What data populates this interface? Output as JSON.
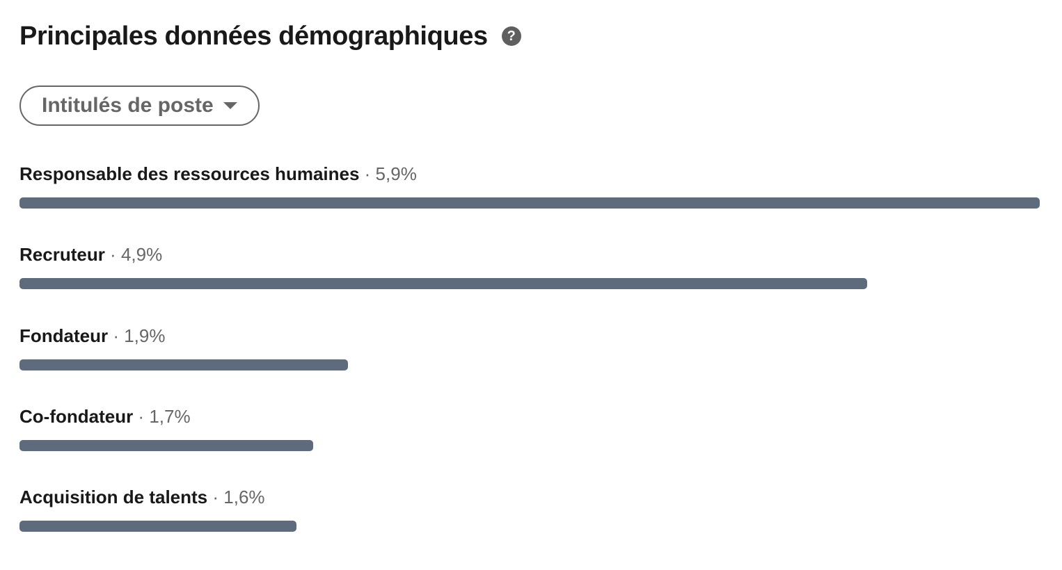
{
  "header": {
    "title": "Principales données démographiques",
    "help_icon": "question-circle-icon"
  },
  "filter": {
    "selected": "Intitulés de poste",
    "icon": "caret-down-icon"
  },
  "bar_color": "#5e6b7d",
  "separator": "·",
  "chart_data": {
    "type": "bar",
    "orientation": "horizontal",
    "categories": [
      "Responsable des ressources humaines",
      "Recruteur",
      "Fondateur",
      "Co-fondateur",
      "Acquisition de talents"
    ],
    "values": [
      5.9,
      4.9,
      1.9,
      1.7,
      1.6
    ],
    "labels": [
      "5,9%",
      "4,9%",
      "1,9%",
      "1,7%",
      "1,6%"
    ],
    "unit": "%"
  }
}
